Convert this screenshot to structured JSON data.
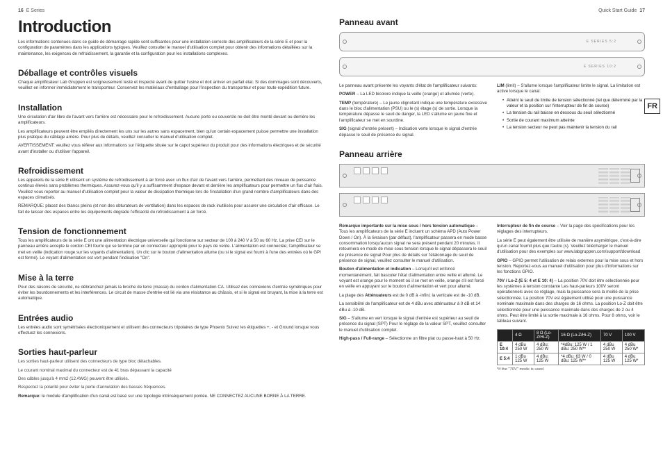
{
  "header": {
    "left_pgnum": "16",
    "left_series": "E Series",
    "right_guide": "Quick Start Guide",
    "right_pgnum": "17"
  },
  "lang_tab": "FR",
  "left": {
    "title": "Introduction",
    "intro": "Les informations contenues dans ce guide de démarrage rapide sont suffisantes pour une installation correcte des amplificateurs de la série E et pour la configuration de paramètres dans les applications typiques. Veuillez consulter le manuel d'utilisation complet pour obtenir des informations détaillées sur la maintenance, les exigences de refroidissement, la garantie et la configuration pour les installations complexes.",
    "s1": {
      "h": "Déballage et contrôles visuels",
      "p": "Chaque amplificateur Lab Gruppen est soigneusement testé et inspecté avant de quitter l'usine et doit arriver en parfait état. Si des dommages sont découverts, veuillez en informer immédiatement le transporteur. Conservez les matériaux d'emballage pour l'inspection du transporteur et pour toute expédition future."
    },
    "s2": {
      "h": "Installation",
      "p1": "Une circulation d'air libre de l'avant vers l'arrière est nécessaire pour le refroidissement. Aucune porte ou couvercle ne doit être monté devant ou derrière les amplificateurs.",
      "p2": "Les amplificateurs peuvent être empilés directement les uns sur les autres sans espacement, bien qu'un certain espacement puisse permettre une installation plus pratique du câblage arrière. Pour plus de détails, veuillez consulter le manuel d'utilisation complet.",
      "p3": "AVERTISSEMENT: veuillez vous référer aux informations sur l'étiquette située sur le capot supérieur du produit pour des informations électriques et de sécurité avant d'installer ou d'utiliser l'appareil."
    },
    "s3": {
      "h": "Refroidissement",
      "p1": "Les appareils de la série E utilisent un système de refroidissement à air forcé avec un flux d'air de l'avant vers l'arrière, permettant des niveaux de puissance continus élevés sans problèmes thermiques. Assurez-vous qu'il y a suffisamment d'espace devant et derrière les amplificateurs pour permettre un flux d'air frais. Veuillez vous reporter au manuel d'utilisation complet pour la valeur de dissipation thermique lors de l'installation d'un grand nombre d'amplificateurs dans des espaces climatisés.",
      "p2": "REMARQUE: placez des blancs pleins (et non des obturateurs de ventilation) dans les espaces de rack inutilisés pour assurer une circulation d'air efficace. Le fait de laisser des espaces entre les équipements dégrade l'efficacité du refroidissement à air forcé."
    },
    "s4": {
      "h": "Tension de fonctionnement",
      "p": "Tous les amplificateurs de la série E ont une alimentation électrique universelle qui fonctionne sur secteur de 100 à 240 V à 50 ou 60 Hz. La prise CEI sur le panneau arrière accepte le cordon CEI fourni qui se termine par un connecteur approprié pour le pays de vente. L'alimentation est connectée; l'amplificateur se met en veille (indication rouge sur les voyants d'alimentation). Un clic sur le bouton d'alimentation allume (ou si le signal est fourni à l'une des entrées où le GPI est fermé). Le voyant d'alimentation est vert pendant l'indication \"On\"."
    },
    "s5": {
      "h": "Mise à la terre",
      "p": "Pour des raisons de sécurité, ne débranchez jamais la broche de terre (masse) du cordon d'alimentation CA. Utilisez des connexions d'entrée symétriques pour éviter les bourdonnements et les interférences. Le circuit de masse d'entrée est lié via une résistance au châssis, et si le signal est bruyant, la mise à la terre est automatique."
    },
    "s6": {
      "h": "Entrées audio",
      "p": "Les entrées audio sont symétrisées électroniquement et utilisent des connecteurs tripolaires de type Phoenix Suivez les étiquettes +, - et Ground lorsque vous effectuez les connexions."
    },
    "s7": {
      "h": "Sorties haut-parleur",
      "p1": "Les sorties haut-parleur utilisent des connecteurs de type bloc détachables.",
      "p2": "Le courant nominal maximal du connecteur est de 41 bras dépassant la capacité",
      "p3": "Des câbles jusqu'à 4 mm2 (12 AWG) peuvent être utilisés.",
      "p4": "Respectez la polarité pour éviter la perte d'annulation des basses fréquences.",
      "rem_l": "Remarque:",
      "rem": " le module d'amplification d'un canal est basé sur une topologie intrinsèquement pontée. NE CONNECTEZ AUCUNE BORNE À LA TERRE."
    }
  },
  "right": {
    "front_h": "Panneau avant",
    "front_lbl1": "E SERIES 5:2",
    "front_lbl2": "E SERIES 10:2",
    "front_intro": "Le panneau avant présente les voyants d'état de l'amplificateur suivants:",
    "power_l": "POWER",
    "power": " – La LED bicolore indique la veille (orange) et allumée (verte).",
    "temp_l": "TEMP",
    "temp": " (température) – Le jaune clignotant indique une température excessive dans le bloc d'alimentation (PSU) ou le (s) étage (s) de sortie. Lorsque la température dépasse le seuil de danger, la LED s'allume en jaune fixe et l'amplificateur se met en sourdine.",
    "sig_l": "SIG",
    "sig": " (signal d'entrée présent) – Indication verte lorsque le signal d'entrée dépasse le seuil de présence du signal.",
    "lim_l": "LIM",
    "lim": " (limit) – S'allume lorsque l'amplificateur limite le signal. La limitation est active lorsque le canal:",
    "lim_items": [
      "Atteint le seuil de limite de tension sélectionné (tel que déterminé par la valeur et la position sur l'interrupteur de fin de course)",
      "La tension du rail baisse en dessous du seuil sélectionné",
      "Sortie de courant maximum atteinte",
      "La tension secteur ne peut pas maintenir la tension du rail"
    ],
    "rear_h": "Panneau arrière",
    "col_l": {
      "note_l": "Remarque importante sur la mise sous / hors tension automatique",
      "note": " – Tous les amplificateurs de la série E incluent un schéma APD (Auto Power Down / On). À la livraison (par défaut), l'amplificateur passera en mode basse consommation lorsqu'aucun signal ne sera présent pendant 20 minutes. Il retournera en mode de mise sous tension lorsque le signal dépassera le seuil de présence de signal Pour plus de détails sur l'étalonnage du seuil de présence de signal, veuillez consulter le manuel d'utilisation.",
      "btn_l": "Bouton d'alimentation et indication",
      "btn": " – Lorsqu'il est enfoncé momentanément, fait basculer l'état d'alimentation entre veille et allumé. Le voyant est orange pour le moment où il se met en veille, orange s'il est forcé en veille en appuyant sur le bouton d'alimentation et vert pour allumé.",
      "att1": "La plage des ",
      "att_l": "Atténuateurs",
      "att2": " est de 0 dB à -infini; la verticale est de -10 dB.",
      "sens": "La sensibilité de l'amplificateur est de 4 dBu avec atténuateur à 0 dB et 14 dBu à -10 dB.",
      "sig2_l": "SIG",
      "sig2": " – S'allume en vert lorsque le signal d'entrée est supérieur au seuil de présence du signal (SPT) Pour le réglage de la valeur SPT, veuillez consulter le manuel d'utilisation complet.",
      "hp_l": "High-pass / Full-range",
      "hp": " – Sélectionne un filtre plat ou passe-haut à 50 Hz."
    },
    "col_r": {
      "eoc_l": "Interrupteur de fin de course",
      "eoc": " – Voir la page des spécifications pour les réglages des interrupteurs.",
      "asym": "La série E peut également être utilisée de manière asymétrique, c'est-à-dire qu'un canal fournit plus que l'autre (s). Veuillez télécharger le manuel d'utilisation pour des exemples sur www.labgruppen.com/support/download",
      "gpio_l": "GPIO",
      "gpio": " – GPIO permet l'utilisation de relais externes pour la mise sous et hors tension. Reportez-vous au manuel d'utilisation pour plus d'informations sur les fonctions GPIO.",
      "loz_l": "70V / Lo-Z (E 5: 4 et E 10: 4)",
      "loz": " – La position 70V doit être sélectionnée pour les systèmes à tension constante Les haut-parleurs 100V seront opérationnels avec ce réglage, mais la puissance sera la moitié de la prise sélectionnée. La position 70V est également utilisé pour une puissance nominale maximale dans des charges de 16 ohms. La position Lo-Z doit être sélectionnée pour une puissance maximale dans des charges de 2 ou 4 ohms. Peut être limité à la sortie maximale à 16 ohms. Pour 8 ohms, voir le tableau suivant."
    },
    "table": {
      "cols": [
        "",
        "4 Ω",
        "8 Ω (Lo-Z/Hi-Z)",
        "16 Ω (Lo-Z/Hi-Z)",
        "70 V",
        "100 V"
      ],
      "rows": [
        [
          "E 10:4",
          "4 dBu 250 W",
          "4 dBu: 250 W",
          "*4dBu: 125 W / 1 dBu: 250 W**",
          "4 dBu 250 W",
          "4 dBu 250 W*"
        ],
        [
          "E 5:4",
          "1 dBu 125 W",
          "4 dBu: 125 W",
          "*4 dBu: 63 W / 0 dBu: 125 W**",
          "4 dBu 125 W",
          "4 dBu 125 W*"
        ]
      ],
      "note": "*if the \"70V\" mode is used"
    }
  }
}
